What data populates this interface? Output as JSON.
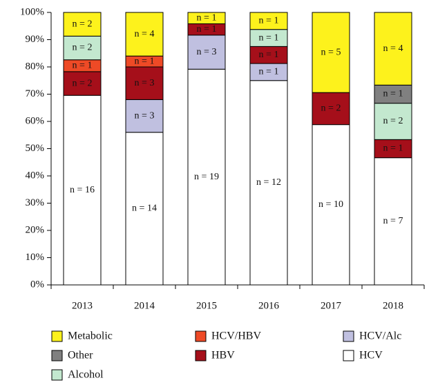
{
  "chart_data": {
    "type": "bar",
    "stacking": "percent",
    "categories": [
      "2013",
      "2014",
      "2015",
      "2016",
      "2017",
      "2018"
    ],
    "series": [
      {
        "name": "Metabolic",
        "color": "#fdf21c",
        "values": [
          2,
          4,
          1,
          1,
          5,
          4
        ],
        "value_labels": [
          "n = 2",
          "n = 4",
          "n = 1",
          "n = 1",
          "n = 5",
          "n = 4"
        ]
      },
      {
        "name": "HCV/HBV",
        "color": "#ee4a26",
        "values": [
          1,
          1,
          null,
          null,
          null,
          null
        ],
        "value_labels": [
          "n = 1",
          "n = 1",
          null,
          null,
          null,
          null
        ]
      },
      {
        "name": "HCV/Alc",
        "color": "#c0c0e0",
        "values": [
          null,
          3,
          3,
          1,
          null,
          null
        ],
        "value_labels": [
          null,
          "n = 3",
          "n = 3",
          "n = 1",
          null,
          null
        ]
      },
      {
        "name": "Other",
        "color": "#808080",
        "values": [
          null,
          null,
          null,
          null,
          null,
          1
        ],
        "value_labels": [
          null,
          null,
          null,
          null,
          null,
          "n = 1"
        ]
      },
      {
        "name": "HBV",
        "color": "#a50f1a",
        "values": [
          2,
          3,
          1,
          1,
          2,
          1
        ],
        "value_labels": [
          "n = 2",
          "n = 3",
          "n = 1",
          "n = 1",
          "n = 2",
          "n = 1"
        ]
      },
      {
        "name": "HCV",
        "color": "#ffffff",
        "values": [
          16,
          14,
          19,
          12,
          10,
          7
        ],
        "value_labels": [
          "n = 16",
          "n = 14",
          "n = 19",
          "n = 12",
          "n = 10",
          "n = 7"
        ]
      },
      {
        "name": "Alcohol",
        "color": "#c3e8cf",
        "values": [
          2,
          null,
          null,
          1,
          null,
          2
        ],
        "value_labels": [
          "n = 2",
          null,
          null,
          "n = 1",
          null,
          "n = 2"
        ]
      }
    ],
    "ylim": [
      0,
      100
    ],
    "yticks": [
      {
        "value": 0,
        "label": "0%"
      },
      {
        "value": 10,
        "label": "10%"
      },
      {
        "value": 20,
        "label": "20%"
      },
      {
        "value": 30,
        "label": "30%"
      },
      {
        "value": 40,
        "label": "40%"
      },
      {
        "value": 50,
        "label": "50%"
      },
      {
        "value": 60,
        "label": "60%"
      },
      {
        "value": 70,
        "label": "70%"
      },
      {
        "value": 80,
        "label": "80%"
      },
      {
        "value": 90,
        "label": "90%"
      },
      {
        "value": 100,
        "label": "100%"
      }
    ]
  }
}
